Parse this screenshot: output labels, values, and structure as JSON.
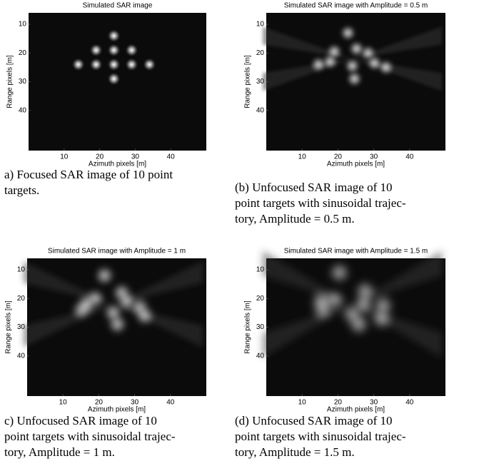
{
  "chart_data": [
    {
      "type": "image",
      "title": "Simulated SAR image",
      "xlabel": "Azimuth pixels [m]",
      "ylabel": "Range pixels [m]",
      "xlim": [
        0,
        50
      ],
      "ylim": [
        6,
        54
      ],
      "xticks": [
        10,
        20,
        30,
        40
      ],
      "yticks": [
        10,
        20,
        30,
        40
      ],
      "caption": [
        "a) Focused SAR image of 10 point",
        "targets."
      ]
    },
    {
      "type": "image",
      "title": "Simulated SAR image with Amplitude = 0.5 m",
      "xlabel": "Azimuth pixels [m]",
      "ylabel": "Range pixels [m]",
      "xlim": [
        0,
        50
      ],
      "ylim": [
        6,
        54
      ],
      "xticks": [
        10,
        20,
        30,
        40
      ],
      "yticks": [
        10,
        20,
        30,
        40
      ],
      "caption": [
        "(b) Unfocused SAR image of 10",
        "point targets with sinusoidal trajec-",
        "tory, Amplitude = 0.5 m."
      ]
    },
    {
      "type": "image",
      "title": "Simulated SAR image with Amplitude = 1 m",
      "xlabel": "Azimuth pixels [m]",
      "ylabel": "Range pixels [m]",
      "xlim": [
        0,
        50
      ],
      "ylim": [
        6,
        54
      ],
      "xticks": [
        10,
        20,
        30,
        40
      ],
      "yticks": [
        10,
        20,
        30,
        40
      ],
      "caption": [
        "c) Unfocused SAR image of 10",
        "point targets with sinusoidal trajec-",
        "tory, Amplitude = 1 m."
      ]
    },
    {
      "type": "image",
      "title": "Simulated SAR image with Amplitude = 1.5 m",
      "xlabel": "Azimuth pixels [m]",
      "ylabel": "Range pixels [m]",
      "xlim": [
        0,
        50
      ],
      "ylim": [
        6,
        54
      ],
      "xticks": [
        10,
        20,
        30,
        40
      ],
      "yticks": [
        10,
        20,
        30,
        40
      ],
      "caption": [
        "(d) Unfocused SAR image of 10",
        "point targets with sinusoidal trajec-",
        "tory, Amplitude = 1.5 m."
      ]
    }
  ]
}
